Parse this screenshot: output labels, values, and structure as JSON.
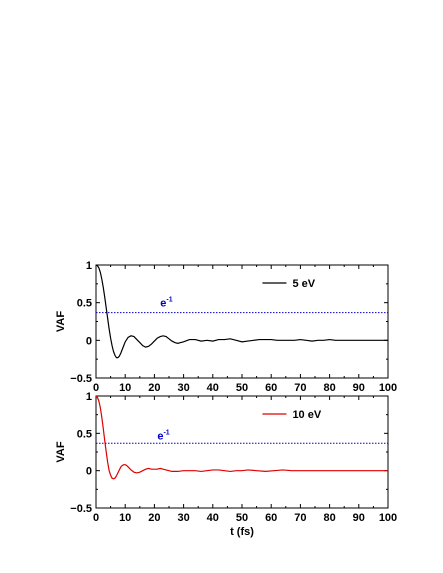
{
  "chart_data": [
    {
      "type": "line",
      "xlabel": "",
      "ylabel": "VAF",
      "xlim": [
        0,
        100
      ],
      "ylim": [
        -0.5,
        1
      ],
      "x_ticks": [
        "0",
        "10",
        "20",
        "30",
        "40",
        "50",
        "60",
        "70",
        "80",
        "90",
        "100"
      ],
      "y_ticks": [
        "-0.5",
        "0",
        "0.5",
        "1"
      ],
      "grid": false,
      "legend_position": "top-right",
      "series": [
        {
          "name": "5 eV",
          "color": "#000000",
          "x": [
            0,
            0.5,
            1,
            1.5,
            2,
            2.5,
            3,
            3.5,
            4,
            4.5,
            5,
            5.5,
            6,
            6.5,
            7,
            7.5,
            8,
            8.5,
            9,
            9.5,
            10,
            11,
            12,
            13,
            14,
            15,
            16,
            17,
            18,
            19,
            20,
            21,
            22,
            23,
            24,
            25,
            26,
            27,
            28,
            29,
            30,
            32,
            34,
            36,
            38,
            40,
            42,
            44,
            46,
            48,
            50,
            52,
            54,
            56,
            58,
            60,
            62,
            64,
            66,
            68,
            70,
            72,
            74,
            76,
            78,
            80,
            82,
            84,
            86,
            88,
            90,
            92,
            94,
            96,
            98,
            100
          ],
          "values": [
            1,
            0.99,
            0.96,
            0.9,
            0.81,
            0.7,
            0.57,
            0.43,
            0.29,
            0.15,
            0.03,
            -0.07,
            -0.15,
            -0.2,
            -0.23,
            -0.23,
            -0.21,
            -0.17,
            -0.12,
            -0.07,
            -0.02,
            0.04,
            0.06,
            0.05,
            0.01,
            -0.03,
            -0.07,
            -0.09,
            -0.08,
            -0.05,
            -0.01,
            0.03,
            0.05,
            0.06,
            0.05,
            0.02,
            -0.01,
            -0.03,
            -0.04,
            -0.03,
            -0.02,
            0.01,
            0.01,
            -0.01,
            0,
            -0.01,
            0.01,
            0.01,
            0.02,
            0,
            -0.02,
            -0.01,
            0,
            0.01,
            0.01,
            0.01,
            0,
            0,
            0,
            0,
            0.01,
            0,
            -0.01,
            0,
            0,
            0.01,
            0,
            0,
            0,
            0,
            0,
            0,
            0,
            0,
            0,
            0
          ]
        },
        {
          "name": "e⁻¹",
          "color": "#0000cc",
          "x": [
            0,
            100
          ],
          "values": [
            0.368,
            0.368
          ]
        }
      ],
      "annotations": [
        {
          "text": "e",
          "superscript": "-1",
          "x": 22,
          "y": 0.5
        }
      ]
    },
    {
      "type": "line",
      "xlabel": "t (fs)",
      "ylabel": "VAF",
      "xlim": [
        0,
        100
      ],
      "ylim": [
        -0.5,
        1
      ],
      "x_ticks": [
        "0",
        "10",
        "20",
        "30",
        "40",
        "50",
        "60",
        "70",
        "80",
        "90",
        "100"
      ],
      "y_ticks": [
        "-0.5",
        "0",
        "0.5",
        "1"
      ],
      "grid": false,
      "legend_position": "top-right",
      "series": [
        {
          "name": "10 eV",
          "color": "#e00000",
          "x": [
            0,
            0.5,
            1,
            1.5,
            2,
            2.5,
            3,
            3.5,
            4,
            4.5,
            5,
            5.5,
            6,
            6.5,
            7,
            7.5,
            8,
            8.5,
            9,
            9.5,
            10,
            10.5,
            11,
            12,
            13,
            14,
            15,
            16,
            17,
            18,
            19,
            20,
            21,
            22,
            23,
            24,
            25,
            26,
            28,
            30,
            32,
            34,
            36,
            38,
            40,
            42,
            44,
            46,
            48,
            50,
            52,
            55,
            58,
            61,
            64,
            67,
            70,
            75,
            80,
            85,
            90,
            95,
            100
          ],
          "values": [
            1,
            0.98,
            0.93,
            0.84,
            0.71,
            0.56,
            0.4,
            0.25,
            0.11,
            0,
            -0.06,
            -0.1,
            -0.11,
            -0.1,
            -0.07,
            -0.03,
            0.01,
            0.05,
            0.07,
            0.08,
            0.08,
            0.07,
            0.05,
            0.01,
            -0.02,
            -0.03,
            -0.02,
            0,
            0.02,
            0.03,
            0.02,
            0.02,
            0.02,
            0.03,
            0.02,
            0.01,
            0,
            -0.01,
            -0.01,
            0,
            0,
            0,
            -0.01,
            0,
            0.01,
            0.01,
            0,
            -0.01,
            0,
            0,
            0.01,
            0,
            -0.01,
            0,
            0.01,
            0,
            0,
            0,
            0,
            0,
            0,
            0,
            0
          ]
        },
        {
          "name": "e⁻¹",
          "color": "#0000cc",
          "x": [
            0,
            100
          ],
          "values": [
            0.368,
            0.368
          ]
        }
      ],
      "annotations": [
        {
          "text": "e",
          "superscript": "-1",
          "x": 21,
          "y": 0.47
        }
      ]
    }
  ]
}
